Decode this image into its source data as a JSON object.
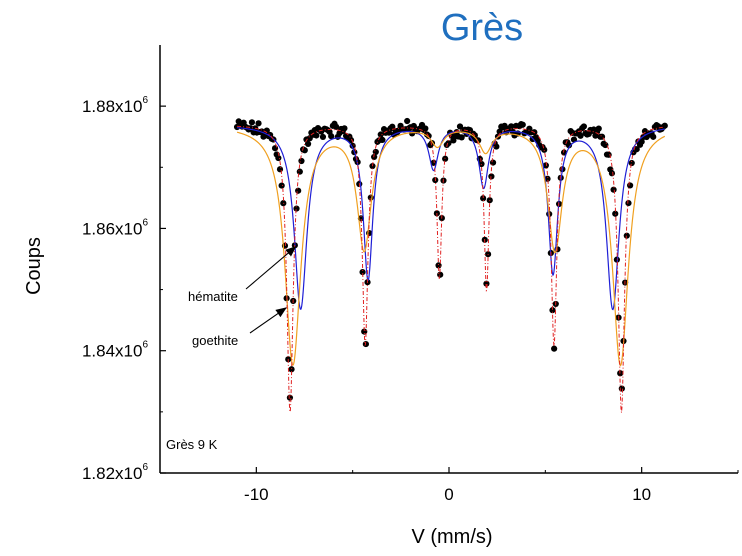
{
  "chart_data": {
    "type": "scatter",
    "title": "Grès",
    "xlabel": "V (mm/s)",
    "ylabel": "Coups",
    "xlim": [
      -15,
      15
    ],
    "ylim": [
      1820000,
      1890000
    ],
    "x_ticks": [
      -10,
      0,
      10
    ],
    "x_tick_labels": [
      "-10",
      "0",
      "10"
    ],
    "y_ticks": [
      {
        "value": 1820000,
        "base": "1.82x10",
        "exp": "6"
      },
      {
        "value": 1840000,
        "base": "1.84x10",
        "exp": "6"
      },
      {
        "value": 1860000,
        "base": "1.86x10",
        "exp": "6"
      },
      {
        "value": 1880000,
        "base": "1.88x10",
        "exp": "6"
      }
    ],
    "sample_label": "Grès 9 K",
    "annotations": [
      {
        "text": "hématite",
        "target": [
          -7.7,
          1857000
        ]
      },
      {
        "text": "goethite",
        "target": [
          -8.2,
          1847000
        ]
      }
    ],
    "baseline": 1877000,
    "series": [
      {
        "kind": "points",
        "color": "#000000",
        "x_range": [
          -11,
          11.2
        ],
        "lines": [
          {
            "center": -8.25,
            "depth": 44000,
            "hwhm": 0.23
          },
          {
            "center": -4.35,
            "depth": 36000,
            "hwhm": 0.19
          },
          {
            "center": -0.5,
            "depth": 25000,
            "hwhm": 0.16
          },
          {
            "center": 1.95,
            "depth": 26000,
            "hwhm": 0.16
          },
          {
            "center": 5.45,
            "depth": 36000,
            "hwhm": 0.19
          },
          {
            "center": 8.95,
            "depth": 44000,
            "hwhm": 0.23
          }
        ]
      },
      {
        "kind": "line",
        "color": "#1f1fd6",
        "x_range": [
          -11,
          11.2
        ],
        "lines": [
          {
            "center": -7.7,
            "depth": 30000,
            "hwhm": 0.4
          },
          {
            "center": -4.2,
            "depth": 25000,
            "hwhm": 0.3
          },
          {
            "center": -0.8,
            "depth": 7000,
            "hwhm": 0.3
          },
          {
            "center": 1.8,
            "depth": 10000,
            "hwhm": 0.3
          },
          {
            "center": 5.4,
            "depth": 24000,
            "hwhm": 0.3
          },
          {
            "center": 8.5,
            "depth": 30000,
            "hwhm": 0.4
          }
        ]
      },
      {
        "kind": "line",
        "color": "#f0a020",
        "x_range": [
          -11,
          11.2
        ],
        "lines": [
          {
            "center": -8.1,
            "depth": 39000,
            "hwhm": 0.5
          },
          {
            "center": -4.4,
            "depth": 20000,
            "hwhm": 0.45
          },
          {
            "center": -0.6,
            "depth": 3000,
            "hwhm": 0.4
          },
          {
            "center": 1.9,
            "depth": 4000,
            "hwhm": 0.4
          },
          {
            "center": 5.5,
            "depth": 20000,
            "hwhm": 0.45
          },
          {
            "center": 8.9,
            "depth": 39000,
            "hwhm": 0.5
          }
        ]
      },
      {
        "kind": "dashdot",
        "color": "#e02020",
        "x_range": [
          -11,
          11.2
        ],
        "lines": [
          {
            "center": -8.25,
            "depth": 47000,
            "hwhm": 0.2
          },
          {
            "center": -4.35,
            "depth": 36000,
            "hwhm": 0.18
          },
          {
            "center": -0.5,
            "depth": 25000,
            "hwhm": 0.15
          },
          {
            "center": 1.95,
            "depth": 27000,
            "hwhm": 0.15
          },
          {
            "center": 5.45,
            "depth": 36000,
            "hwhm": 0.18
          },
          {
            "center": 8.95,
            "depth": 47000,
            "hwhm": 0.2
          }
        ]
      }
    ]
  }
}
